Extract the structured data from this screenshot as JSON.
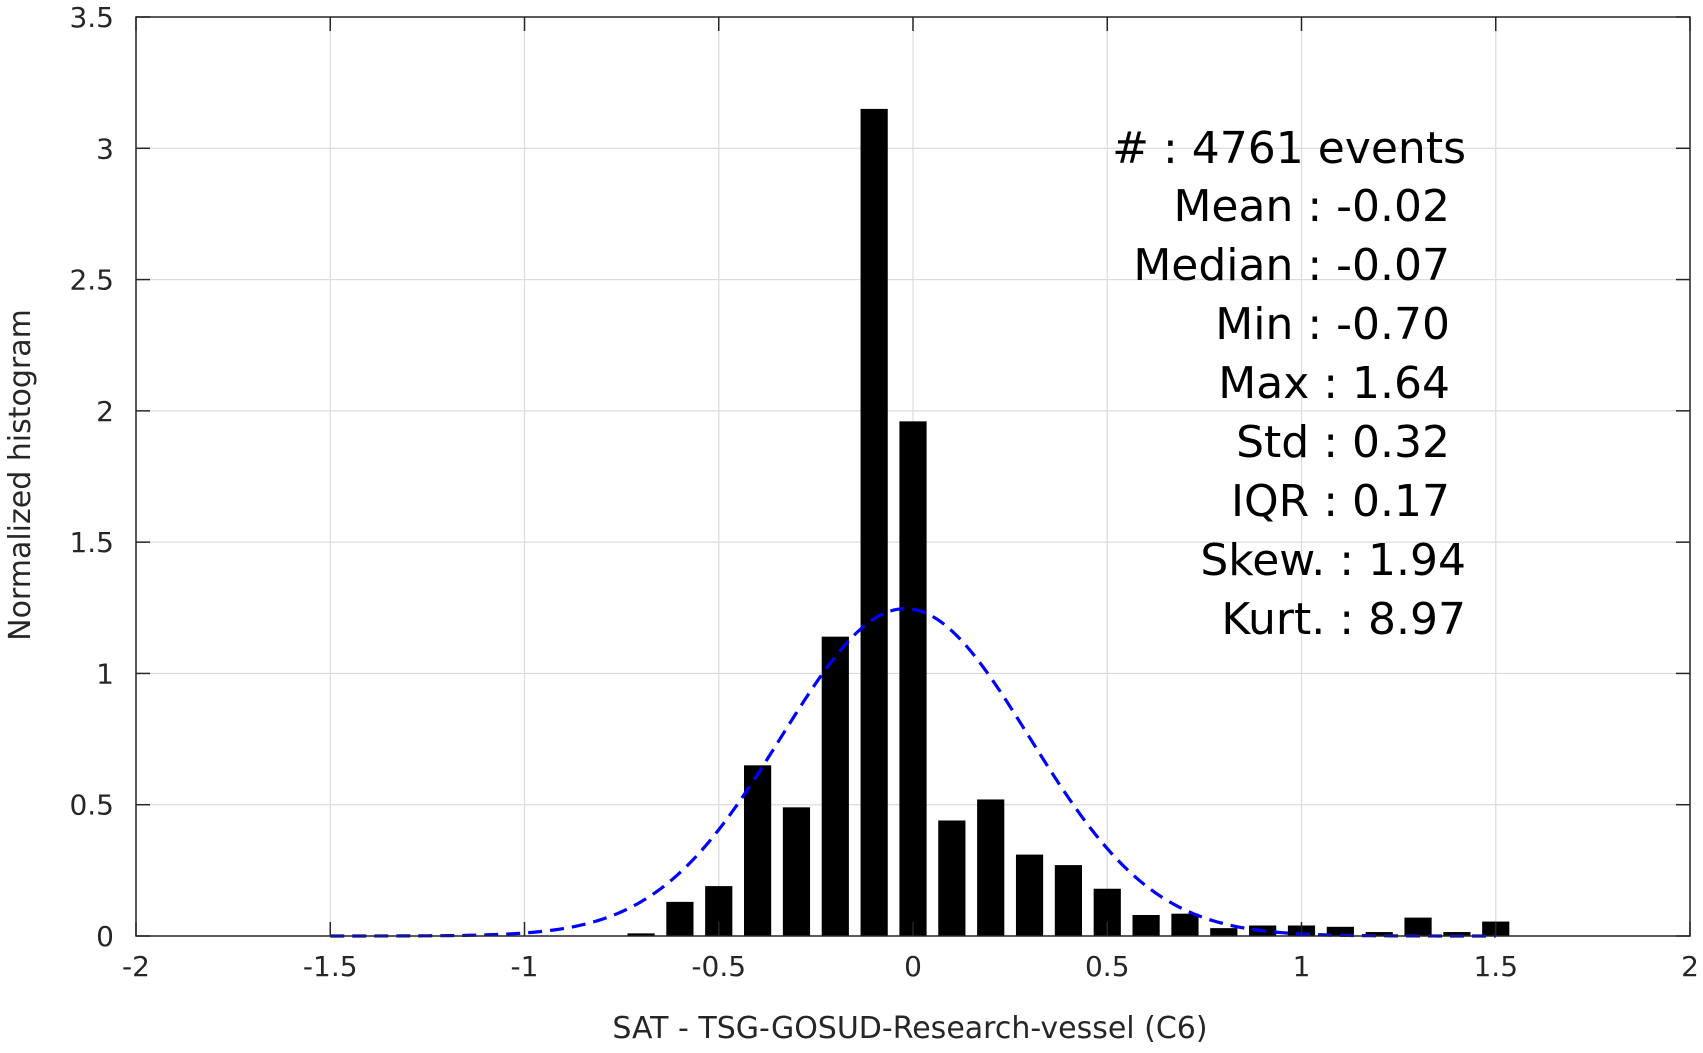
{
  "chart_data": {
    "type": "bar",
    "title": "",
    "xlabel": "SAT - TSG-GOSUD-Research-vessel (C6)",
    "ylabel": "Normalized histogram",
    "xlim": [
      -2,
      2
    ],
    "ylim": [
      0,
      3.5
    ],
    "xticks": [
      -2,
      -1.5,
      -1,
      -0.5,
      0,
      0.5,
      1,
      1.5,
      2
    ],
    "xtick_labels": [
      "-2",
      "-1.5",
      "-1",
      "-0.5",
      "0",
      "0.5",
      "1",
      "1.5",
      "2"
    ],
    "yticks": [
      0,
      0.5,
      1,
      1.5,
      2,
      2.5,
      3,
      3.5
    ],
    "ytick_labels": [
      "0",
      "0.5",
      "1",
      "1.5",
      "2",
      "2.5",
      "3",
      "3.5"
    ],
    "grid": true,
    "bin_width": 0.1,
    "bar_width": 0.07,
    "series": [
      {
        "type": "bar",
        "color": "#000000",
        "x": [
          -0.7,
          -0.6,
          -0.5,
          -0.4,
          -0.3,
          -0.2,
          -0.1,
          0.0,
          0.1,
          0.2,
          0.3,
          0.4,
          0.5,
          0.6,
          0.7,
          0.8,
          0.9,
          1.0,
          1.1,
          1.2,
          1.3,
          1.4,
          1.5
        ],
        "values": [
          0.01,
          0.13,
          0.19,
          0.65,
          0.49,
          1.14,
          3.15,
          1.96,
          0.44,
          0.52,
          0.31,
          0.27,
          0.18,
          0.08,
          0.085,
          0.03,
          0.04,
          0.04,
          0.035,
          0.015,
          0.07,
          0.015,
          0.055
        ]
      },
      {
        "type": "line",
        "style": "dashed",
        "color": "#0000ff",
        "mean": -0.02,
        "std": 0.32,
        "x_range": [
          -1.5,
          1.5
        ]
      }
    ],
    "annotations": [
      "#  : 4761 events",
      "Mean : -0.02",
      "Median : -0.07",
      "Min : -0.70",
      "Max : 1.64",
      "Std : 0.32",
      "IQR : 0.17",
      "Skew. : 1.94",
      "Kurt. : 8.97"
    ]
  }
}
